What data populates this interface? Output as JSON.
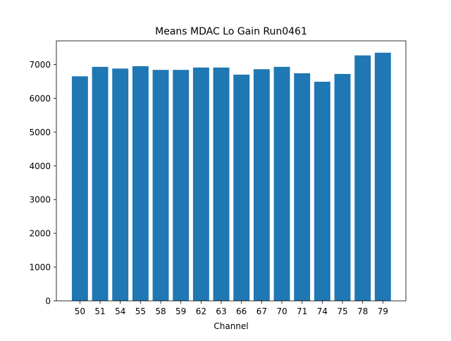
{
  "chart_data": {
    "type": "bar",
    "title": "Means MDAC Lo Gain Run0461",
    "xlabel": "Channel",
    "ylabel": "",
    "categories": [
      "50",
      "51",
      "54",
      "55",
      "58",
      "59",
      "62",
      "63",
      "66",
      "67",
      "70",
      "71",
      "74",
      "75",
      "78",
      "79"
    ],
    "values": [
      6650,
      6930,
      6880,
      6950,
      6840,
      6840,
      6910,
      6910,
      6700,
      6860,
      6930,
      6740,
      6490,
      6720,
      7270,
      7350
    ],
    "ylim": [
      0,
      7700
    ],
    "yticks": [
      0,
      1000,
      2000,
      3000,
      4000,
      5000,
      6000,
      7000
    ],
    "grid": false,
    "legend": "none",
    "colors": {
      "bar": "#1f77b4",
      "axis": "#000000"
    }
  }
}
